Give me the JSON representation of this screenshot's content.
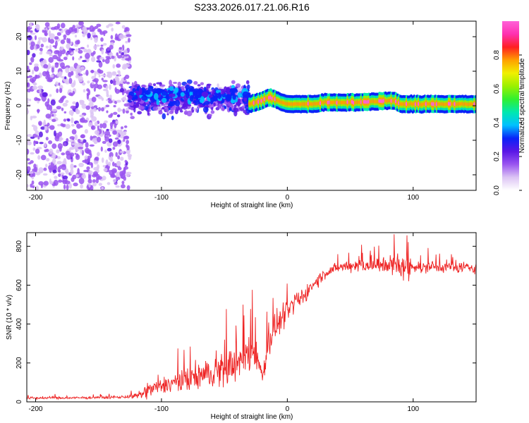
{
  "title": "S233.2026.017.21.06.R16",
  "colors": {
    "snr_line": "#ee2222",
    "frame": "#000000",
    "colormap": [
      "#ffffff",
      "#dcc4f4",
      "#9a55f0",
      "#5a16e6",
      "#0a22f8",
      "#00c0ff",
      "#00e8b0",
      "#30f030",
      "#9af000",
      "#f0f000",
      "#ffa000",
      "#ff2020",
      "#ff30b0",
      "#ff60d8"
    ]
  },
  "chart_data": [
    {
      "type": "heatmap",
      "name": "spectrogram",
      "xlabel": "Height of straight line (km)",
      "ylabel": "Frequency (Hz)",
      "xlim": [
        -207,
        150
      ],
      "ylim": [
        -24.5,
        24.5
      ],
      "xticks": [
        -200,
        -100,
        0,
        100
      ],
      "xtick_labels": [
        "-200",
        "-100",
        "0",
        "100"
      ],
      "yticks": [
        -20,
        -10,
        0,
        10,
        20
      ],
      "ytick_labels": [
        "-20",
        "-10",
        "0",
        "10",
        "20"
      ],
      "colorbar": {
        "label": "Normalized spectral amplitude",
        "range": [
          0,
          1
        ],
        "ticks": [
          0,
          0.2,
          0.4,
          0.6,
          0.8
        ],
        "tick_labels": [
          "0.0",
          "0.2",
          "0.4",
          "0.6",
          "0.8"
        ]
      },
      "regions": [
        {
          "from_km": -207,
          "to_km": -125,
          "description": "broadband noise",
          "freq_range_hz": [
            -24,
            24
          ],
          "amplitude_range": [
            0.05,
            0.2
          ]
        },
        {
          "from_km": -125,
          "to_km": -30,
          "description": "scattered signal",
          "freq_range_hz": [
            -6,
            9
          ],
          "amplitude_range": [
            0.1,
            0.3
          ]
        },
        {
          "from_km": -30,
          "to_km": 150,
          "description": "coherent tone",
          "amplitude_range": [
            0.3,
            1.0
          ]
        }
      ],
      "tone_track": {
        "x_km": [
          -35,
          -30,
          -25,
          -20,
          -15,
          -10,
          -5,
          0,
          10,
          20,
          30,
          40,
          60,
          80,
          85,
          90,
          100,
          120,
          150
        ],
        "freq_hz": [
          0.5,
          0.5,
          1.0,
          1.5,
          2.5,
          2.0,
          1.0,
          0.5,
          0.5,
          0.5,
          1.0,
          1.0,
          1.0,
          1.5,
          1.5,
          0.5,
          0.5,
          0.5,
          0.5
        ]
      }
    },
    {
      "type": "line",
      "name": "snr",
      "xlabel": "Height of straight line (km)",
      "ylabel": "SNR (10 * v/v)",
      "xlim": [
        -207,
        150
      ],
      "ylim": [
        0,
        870
      ],
      "xticks": [
        -200,
        -100,
        0,
        100
      ],
      "xtick_labels": [
        "-200",
        "-100",
        "0",
        "100"
      ],
      "yticks": [
        0,
        200,
        400,
        600,
        800
      ],
      "ytick_labels": [
        "0",
        "200",
        "400",
        "600",
        "800"
      ],
      "series": [
        {
          "name": "SNR",
          "x": [
            -207,
            -190,
            -170,
            -150,
            -130,
            -120,
            -115,
            -110,
            -100,
            -90,
            -80,
            -70,
            -60,
            -50,
            -40,
            -30,
            -25,
            -20,
            -15,
            -10,
            -5,
            0,
            5,
            10,
            15,
            20,
            25,
            30,
            35,
            40,
            50,
            60,
            70,
            80,
            90,
            100,
            110,
            120,
            130,
            140,
            150
          ],
          "mean": [
            20,
            20,
            20,
            22,
            25,
            30,
            40,
            60,
            80,
            100,
            110,
            130,
            150,
            170,
            200,
            250,
            270,
            120,
            300,
            380,
            420,
            460,
            500,
            530,
            560,
            600,
            630,
            660,
            680,
            690,
            700,
            705,
            700,
            700,
            690,
            695,
            690,
            695,
            690,
            690,
            690
          ],
          "spread": [
            10,
            10,
            10,
            10,
            12,
            20,
            40,
            60,
            70,
            80,
            90,
            110,
            120,
            140,
            150,
            160,
            160,
            60,
            120,
            110,
            100,
            90,
            80,
            70,
            60,
            55,
            50,
            45,
            40,
            40,
            50,
            60,
            60,
            70,
            120,
            60,
            50,
            45,
            40,
            40,
            40
          ]
        }
      ]
    }
  ]
}
